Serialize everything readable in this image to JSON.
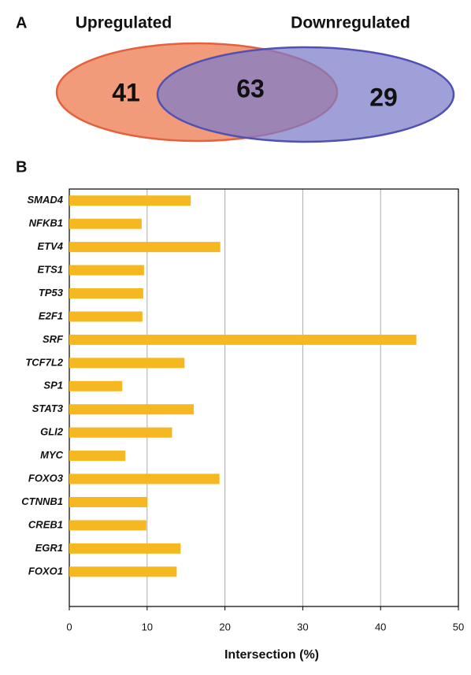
{
  "chart_data": [
    {
      "type": "venn",
      "panel": "A",
      "sets": [
        {
          "name": "Upregulated",
          "color": "#ee8a64",
          "stroke": "#e5603c"
        },
        {
          "name": "Downregulated",
          "color": "#7b7bcb",
          "stroke": "#5151b3"
        }
      ],
      "values": [
        41,
        63,
        29
      ]
    },
    {
      "type": "barh",
      "panel": "B",
      "categories": [
        "SMAD4",
        "NFKB1",
        "ETV4",
        "ETS1",
        "TP53",
        "E2F1",
        "SRF",
        "TCF7L2",
        "SP1",
        "STAT3",
        "GLI2",
        "MYC",
        "FOXO3",
        "CTNNB1",
        "CREB1",
        "EGR1",
        "FOXO1"
      ],
      "values": [
        15.6,
        9.3,
        19.4,
        9.6,
        9.5,
        9.4,
        44.6,
        14.8,
        6.8,
        16.0,
        13.2,
        7.2,
        19.3,
        10.0,
        9.9,
        14.3,
        13.8
      ],
      "color": "#f5b820",
      "xlabel": "Intersection (%)",
      "xlim": [
        0,
        50
      ],
      "xticks": [
        0,
        10,
        20,
        30,
        40,
        50
      ],
      "grid": true
    }
  ]
}
